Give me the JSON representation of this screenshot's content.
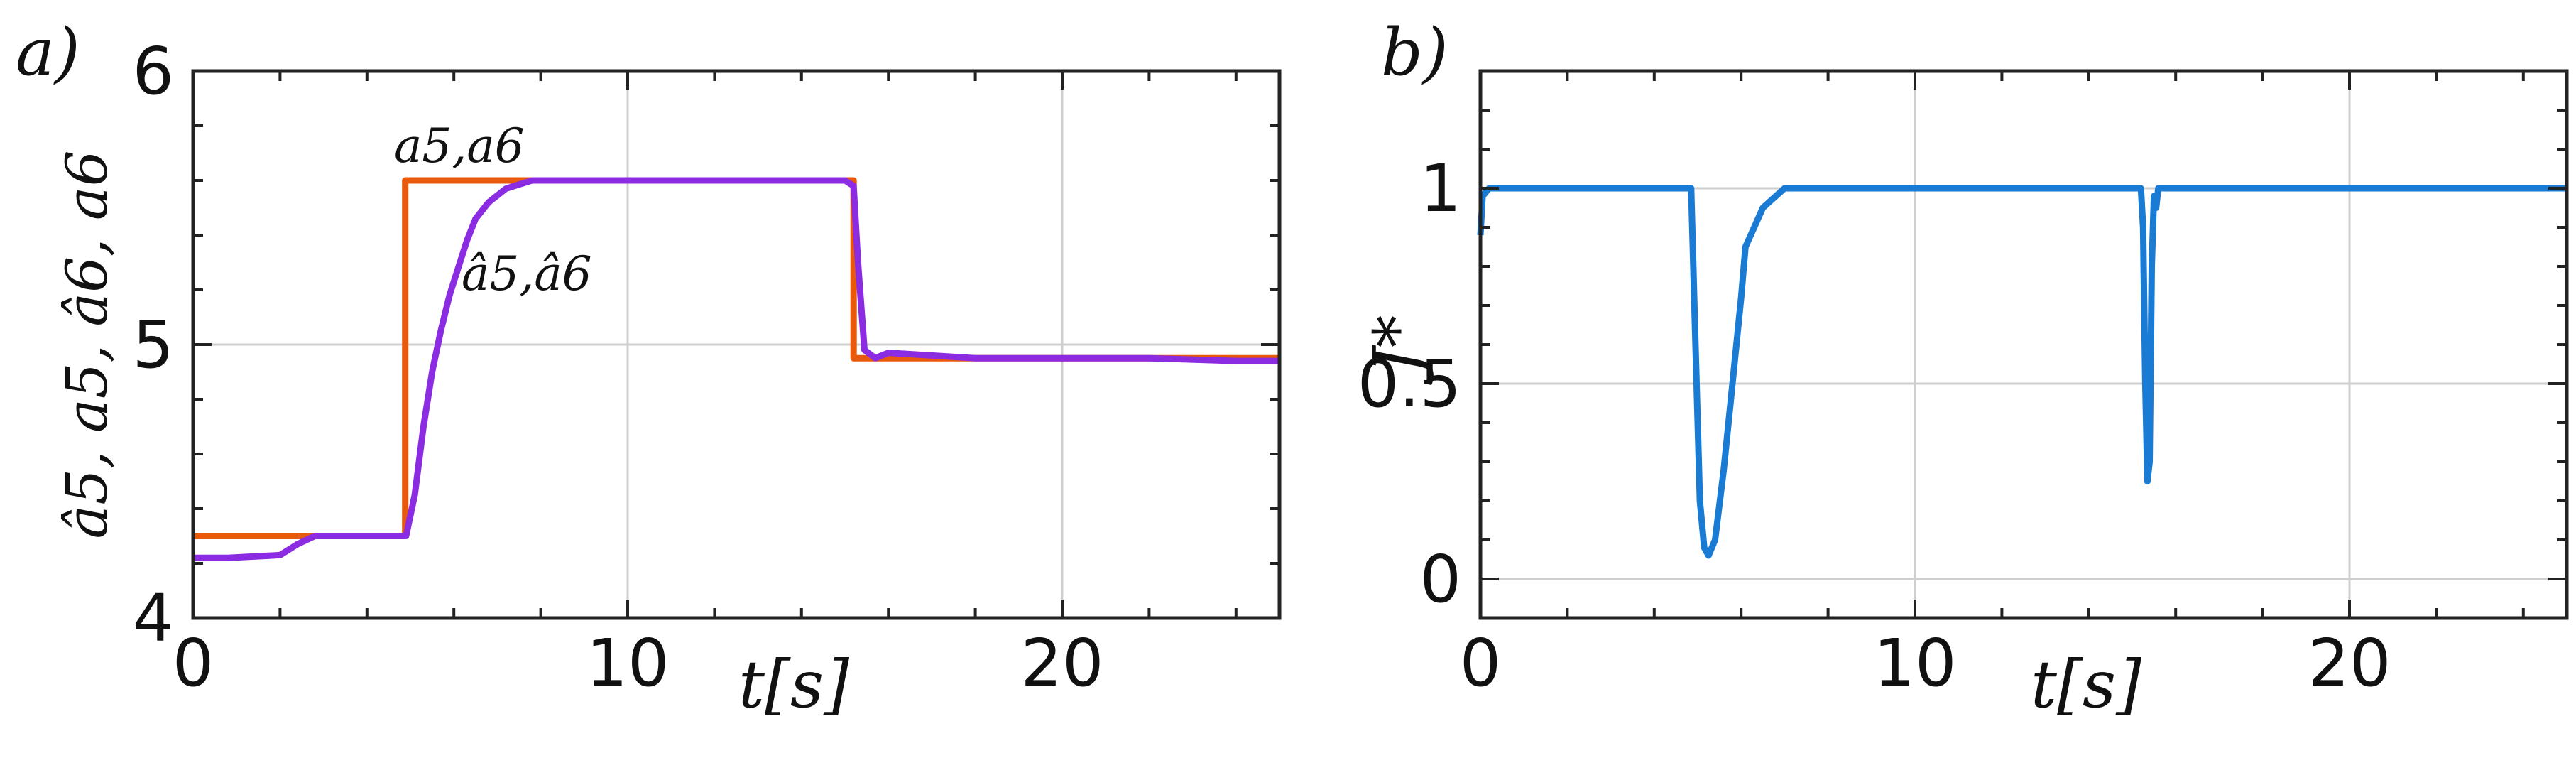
{
  "chart_data": [
    {
      "type": "line",
      "panel_label": "a)",
      "xlabel": "t[s]",
      "ylabel": "â5, a5, â6, a6",
      "xlim": [
        0,
        25
      ],
      "ylim": [
        4,
        6
      ],
      "xticks": [
        "0",
        "10",
        "20"
      ],
      "yticks": [
        "4",
        "5",
        "6"
      ],
      "grid": true,
      "annotations": [
        "a5,a6",
        "â5,â6"
      ],
      "colors": {
        "true": "#e8590c",
        "estimate": "#8b2be2"
      },
      "series": [
        {
          "name": "a5,a6",
          "x": [
            0,
            4.88,
            4.88,
            15.2,
            15.2,
            25
          ],
          "y": [
            4.3,
            4.3,
            5.6,
            5.6,
            4.95,
            4.95
          ]
        },
        {
          "name": "â5,â6",
          "x": [
            0,
            0.8,
            2.0,
            2.4,
            2.8,
            3.5,
            4.9,
            5.1,
            5.3,
            5.5,
            5.7,
            5.9,
            6.1,
            6.3,
            6.5,
            6.8,
            7.2,
            7.8,
            8.5,
            15.0,
            15.2,
            15.3,
            15.45,
            15.7,
            16.0,
            18,
            20,
            22,
            24,
            25
          ],
          "y": [
            4.22,
            4.22,
            4.23,
            4.27,
            4.3,
            4.3,
            4.3,
            4.45,
            4.7,
            4.9,
            5.05,
            5.18,
            5.28,
            5.38,
            5.46,
            5.52,
            5.57,
            5.6,
            5.6,
            5.6,
            5.58,
            5.3,
            4.98,
            4.95,
            4.97,
            4.95,
            4.95,
            4.95,
            4.94,
            4.94
          ]
        }
      ]
    },
    {
      "type": "line",
      "panel_label": "b)",
      "xlabel": "t[s]",
      "ylabel": "J*",
      "xlim": [
        0,
        25
      ],
      "ylim": [
        -0.1,
        1.3
      ],
      "xticks": [
        "0",
        "10",
        "20"
      ],
      "yticks": [
        "0",
        "0.5",
        "1"
      ],
      "grid": true,
      "colors": {
        "line": "#1a7bd4"
      },
      "series": [
        {
          "name": "",
          "x": [
            0,
            0.05,
            0.2,
            4.85,
            4.95,
            5.05,
            5.15,
            5.25,
            5.4,
            5.6,
            5.8,
            6.0,
            6.1,
            6.3,
            6.5,
            6.7,
            7.0,
            7.2,
            15.2,
            15.25,
            15.3,
            15.35,
            15.4,
            15.45,
            15.5,
            15.55,
            15.6,
            15.7,
            25
          ],
          "y": [
            0.88,
            0.98,
            1.0,
            1.0,
            0.6,
            0.2,
            0.08,
            0.06,
            0.1,
            0.28,
            0.5,
            0.72,
            0.85,
            0.9,
            0.95,
            0.97,
            1.0,
            1.0,
            1.0,
            0.9,
            0.5,
            0.25,
            0.3,
            0.8,
            0.98,
            0.95,
            1.0,
            1.0,
            1.0
          ]
        }
      ]
    }
  ]
}
